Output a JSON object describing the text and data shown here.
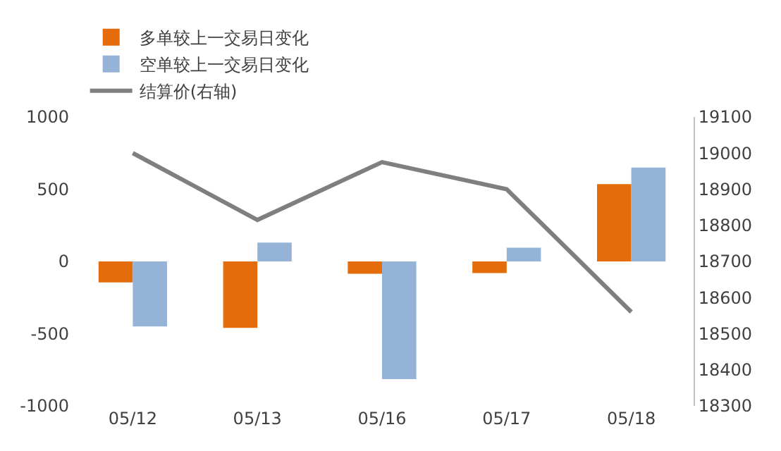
{
  "chart_data": {
    "type": "bar",
    "categories": [
      "05/12",
      "05/13",
      "05/16",
      "05/17",
      "05/18"
    ],
    "series": [
      {
        "name": "多单较上一交易日变化",
        "color": "#e46c0a",
        "values": [
          -145,
          -460,
          -85,
          -80,
          535
        ]
      },
      {
        "name": "空单较上一交易日变化",
        "color": "#95b3d7",
        "values": [
          -450,
          130,
          -815,
          95,
          650
        ]
      },
      {
        "name": "结算价(右轴)",
        "type": "line",
        "axis": "y2",
        "color": "#7f7f7f",
        "marker": "none",
        "values": [
          19000,
          18815,
          18975,
          18900,
          18560
        ]
      }
    ],
    "ylim": [
      -1000,
      1000
    ],
    "yticks": [
      -1000,
      -500,
      0,
      500,
      1000
    ],
    "y2lim": [
      18300,
      19100
    ],
    "y2ticks": [
      18300,
      18400,
      18500,
      18600,
      18700,
      18800,
      18900,
      19000,
      19100
    ],
    "grid": false,
    "legend": "top"
  }
}
